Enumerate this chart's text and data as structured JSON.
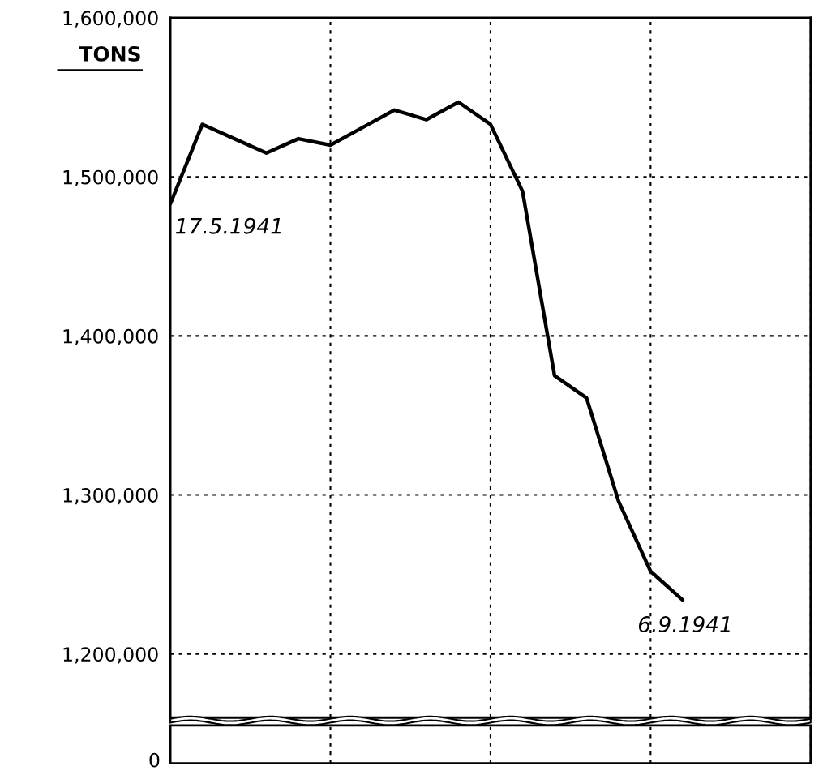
{
  "chart_data": {
    "type": "line",
    "ylabel": "TONS",
    "categories": [
      null,
      null,
      null,
      null,
      null,
      null,
      null,
      null,
      null,
      null,
      null,
      null,
      null,
      null,
      null,
      null,
      null,
      null,
      null,
      null,
      null
    ],
    "series": [
      {
        "color": "#000000",
        "values": [
          1483000,
          1533000,
          1524000,
          1515000,
          1524000,
          1520000,
          1531000,
          1542000,
          1536000,
          1547000,
          1533000,
          1491000,
          1375000,
          1361000,
          1296000,
          1252000,
          1234000,
          null,
          null,
          null,
          null
        ]
      }
    ],
    "ylim": [
      1160000,
      1600000
    ],
    "yticks": [
      {
        "value": 1200000,
        "label": "1,200,000"
      },
      {
        "value": 1300000,
        "label": "1,300,000"
      },
      {
        "value": 1400000,
        "label": "1,400,000"
      },
      {
        "value": 1500000,
        "label": "1,500,000"
      },
      {
        "value": 1600000,
        "label": "1,600,000"
      }
    ],
    "grid": true,
    "line_style": "solid",
    "marker": "none",
    "tick_labels": "y",
    "annotations": [
      "17.5.1941",
      "6.9.1941",
      "0"
    ]
  }
}
